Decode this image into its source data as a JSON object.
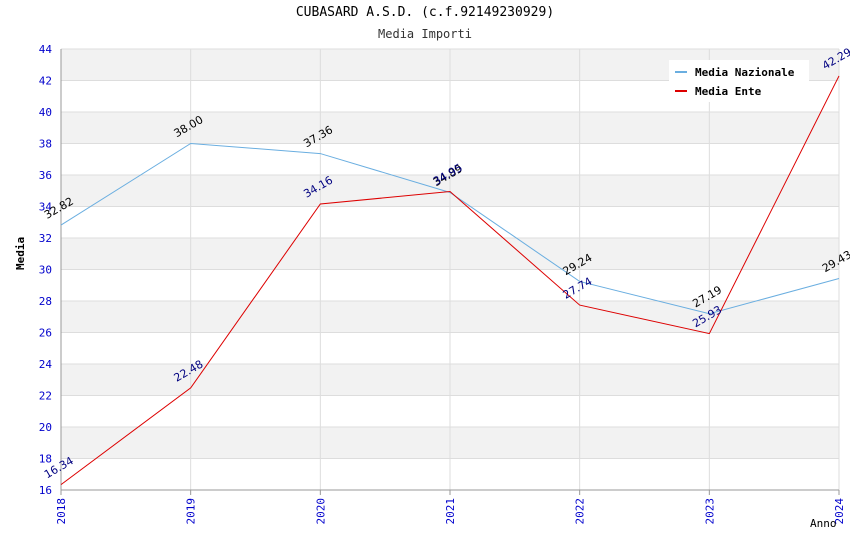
{
  "header": {
    "title": "CUBASARD A.S.D. (c.f.92149230929)",
    "subtitle": "Media Importi"
  },
  "chart_data": {
    "type": "line",
    "title": "CUBASARD A.S.D. (c.f.92149230929)",
    "subtitle": "Media Importi",
    "xlabel": "Anno",
    "ylabel": "Media",
    "x": [
      "2018",
      "2019",
      "2020",
      "2021",
      "2022",
      "2023",
      "2024"
    ],
    "ylim": [
      16,
      44
    ],
    "yticks": [
      16,
      18,
      20,
      22,
      24,
      26,
      28,
      30,
      32,
      34,
      36,
      38,
      40,
      42,
      44
    ],
    "grid": "horizontal-alternating-bands",
    "legend_position": "top-right",
    "series": [
      {
        "name": "Media Nazionale",
        "color": "#6aaee0",
        "label_color": "#000000",
        "values": [
          32.82,
          38.0,
          37.36,
          34.89,
          29.24,
          27.19,
          29.43
        ],
        "labels": [
          "32.82",
          "38.00",
          "37.36",
          "34.89",
          "29.24",
          "27.19",
          "29.43"
        ]
      },
      {
        "name": "Media Ente",
        "color": "#dd0000",
        "label_color": "#000080",
        "values": [
          16.34,
          22.48,
          34.16,
          34.95,
          27.74,
          25.93,
          42.29
        ],
        "labels": [
          "16.34",
          "22.48",
          "34.16",
          "34.95",
          "27.74",
          "25.93",
          "42.29"
        ]
      }
    ]
  },
  "colors": {
    "tick_label": "#0000cc",
    "band": "#f2f2f2",
    "grid": "#dddddd",
    "axis": "#999999"
  }
}
